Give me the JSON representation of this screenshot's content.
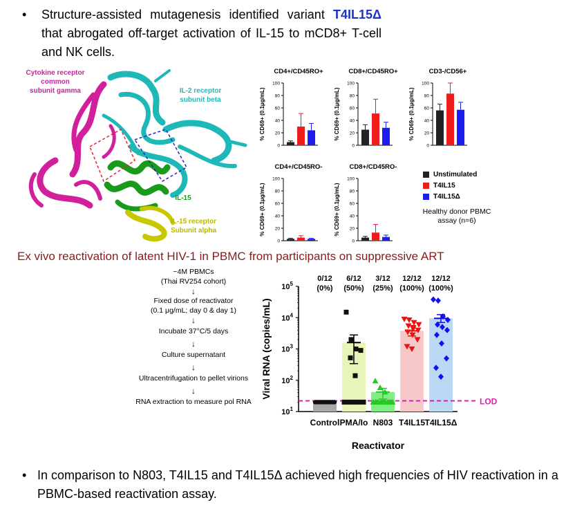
{
  "top_bullet": {
    "pre": "Structure-assisted mutagenesis identified variant ",
    "highlight": "T4IL15Δ",
    "post": " that abrogated off-target activation of IL-15 to mCD8+ T-cell and NK cells."
  },
  "structure_labels": {
    "gamma": "Cytokine receptor common subunit gamma",
    "beta": "IL-2 receptor subunit beta",
    "il15": "IL-15",
    "alpha": "IL-15 receptor Subunit alpha",
    "colors": {
      "gamma": "#c8239a",
      "beta": "#1fb8b8",
      "il15": "#1a9a1a",
      "alpha": "#b8b800"
    }
  },
  "cd69_panels": {
    "ylabel": "% CD69+ (0.1μg/mL)",
    "yticks": [
      0,
      20,
      40,
      60,
      80,
      100
    ],
    "series_colors": {
      "Unstimulated": "#222222",
      "T4IL15": "#ee1c1c",
      "T4IL15Δ": "#1c1cee"
    },
    "legend": [
      "Unstimulated",
      "T4IL15",
      "T4IL15Δ"
    ],
    "note": "Healthy donor PBMC assay (n=6)"
  },
  "chart_data": [
    {
      "type": "bar",
      "title": "CD4+/CD45RO+",
      "ylabel": "% CD69+ (0.1μg/mL)",
      "ylim": [
        0,
        100
      ],
      "categories": [
        "Unstimulated",
        "T4IL15",
        "T4IL15Δ"
      ],
      "values": [
        5,
        30,
        24
      ],
      "errors": [
        2,
        21,
        11
      ]
    },
    {
      "type": "bar",
      "title": "CD8+/CD45RO+",
      "ylabel": "% CD69+ (0.1μg/mL)",
      "ylim": [
        0,
        100
      ],
      "categories": [
        "Unstimulated",
        "T4IL15",
        "T4IL15Δ"
      ],
      "values": [
        25,
        51,
        28
      ],
      "errors": [
        8,
        23,
        9
      ]
    },
    {
      "type": "bar",
      "title": "CD3-/CD56+",
      "ylabel": "% CD69+ (0.1μg/mL)",
      "ylim": [
        0,
        100
      ],
      "categories": [
        "Unstimulated",
        "T4IL15",
        "T4IL15Δ"
      ],
      "values": [
        56,
        83,
        57
      ],
      "errors": [
        10,
        17,
        12
      ]
    },
    {
      "type": "bar",
      "title": "CD4+/CD45RO-",
      "ylabel": "% CD69+ (0.1μg/mL)",
      "ylim": [
        0,
        100
      ],
      "categories": [
        "Unstimulated",
        "T4IL15",
        "T4IL15Δ"
      ],
      "values": [
        3,
        5,
        3
      ],
      "errors": [
        1,
        3,
        1
      ]
    },
    {
      "type": "bar",
      "title": "CD8+/CD45RO-",
      "ylabel": "% CD69+ (0.1μg/mL)",
      "ylim": [
        0,
        100
      ],
      "categories": [
        "Unstimulated",
        "T4IL15",
        "T4IL15Δ"
      ],
      "values": [
        5,
        13,
        6
      ],
      "errors": [
        2,
        13,
        3
      ]
    },
    {
      "type": "scatter",
      "xlabel": "Reactivator",
      "ylabel": "Viral RNA (copies/mL)",
      "yscale": "log",
      "ylim": [
        10,
        100000
      ],
      "yticks": [
        "10^1",
        "10^2",
        "10^3",
        "10^4",
        "10^5"
      ],
      "categories": [
        "Control",
        "PMA/Io",
        "N803",
        "T4IL15",
        "T4IL15Δ"
      ],
      "bar_colors": [
        "#a9a9a9",
        "#e8f5b8",
        "#80ee80",
        "#f7c8c8",
        "#b9d9f5"
      ],
      "point_colors": [
        "#111111",
        "#111111",
        "#22cc22",
        "#ee1111",
        "#1111ee"
      ],
      "bar_values": [
        20,
        1600,
        42,
        3800,
        9500
      ],
      "mean_error": [
        null,
        [
          340,
          2800
        ],
        [
          25,
          55
        ],
        [
          2600,
          5600
        ],
        [
          7000,
          12500
        ]
      ],
      "frequencies": [
        {
          "n": "0/12",
          "pct": "(0%)"
        },
        {
          "n": "6/12",
          "pct": "(50%)"
        },
        {
          "n": "3/12",
          "pct": "(25%)"
        },
        {
          "n": "12/12",
          "pct": "(100%)"
        },
        {
          "n": "12/12",
          "pct": "(100%)"
        }
      ],
      "lod_value": 22,
      "lod_label": "LOD",
      "points": [
        [
          20,
          20,
          20,
          20,
          20,
          20,
          20,
          20,
          20,
          20,
          20,
          20
        ],
        [
          15000,
          2000,
          1000,
          900,
          520,
          140,
          20,
          20,
          20,
          20,
          20,
          20
        ],
        [
          95,
          58,
          42,
          20,
          20,
          20,
          20,
          20,
          20,
          20,
          20,
          20
        ],
        [
          9000,
          8500,
          7000,
          6000,
          5500,
          4500,
          4000,
          3500,
          2800,
          2000,
          1200,
          1000
        ],
        [
          38000,
          35000,
          11000,
          8500,
          6000,
          5000,
          4000,
          2800,
          1500,
          500,
          250,
          130
        ]
      ]
    }
  ],
  "section_title": "Ex vivo reactivation of latent HIV-1 in PBMC from participants on suppressive ART",
  "workflow": [
    "~4M PBMCs",
    "(Thai RV254 cohort)",
    "Fixed dose of reactivator",
    "(0.1 μg/mL; day 0 & day 1)",
    "Incubate 37°C/5 days",
    "Culture supernatant",
    "Ultracentrifugation to pellet virions",
    "RNA extraction to measure pol RNA"
  ],
  "workflow_arrow": "↓",
  "bottom_bullet": "In comparison to N803, T4IL15 and T4IL15Δ achieved high frequencies of HIV reactivation in a PBMC-based reactivation assay.",
  "bullet_glyph": "•"
}
